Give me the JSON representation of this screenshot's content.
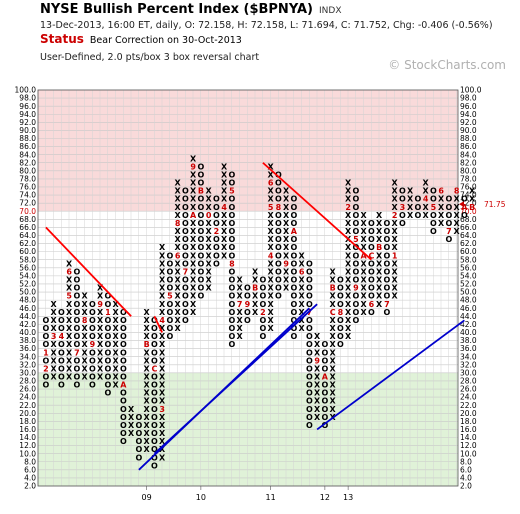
{
  "header": {
    "title": "NYSE Bullish Percent Index ($BPNYA)",
    "symbol_tag": "INDX",
    "subtitle": "13-Dec-2013, 16:00 ET, daily, O: 72.158, H: 72.158, L: 71.694, C: 71.752, Chg: -0.406 (-0.56%)",
    "status_label": "Status",
    "status_text": "Bear Correction on 30-Oct-2013",
    "chart_type_text": "User-Defined, 2.0 pts/box 3 box reversal chart",
    "watermark": "© StockCharts.com"
  },
  "chart_data": {
    "type": "point-and-figure",
    "box_size": 2.0,
    "reversal_boxes": 3,
    "ylim": [
      2,
      100
    ],
    "y_ticks": [
      2,
      4,
      6,
      8,
      10,
      12,
      14,
      16,
      18,
      20,
      22,
      24,
      26,
      28,
      30,
      32,
      34,
      36,
      38,
      40,
      42,
      44,
      46,
      48,
      50,
      52,
      54,
      56,
      58,
      60,
      62,
      64,
      66,
      68,
      70,
      72,
      74,
      76,
      78,
      80,
      82,
      84,
      86,
      88,
      90,
      92,
      94,
      96,
      98,
      100
    ],
    "zones": [
      {
        "name": "overbought",
        "from": 70,
        "to": 100,
        "color": "#f9dada"
      },
      {
        "name": "oversold",
        "from": 2,
        "to": 30,
        "color": "#e0f2d8"
      }
    ],
    "last_value_label": "71.75",
    "x_labels": [
      {
        "label": "09",
        "column": 13
      },
      {
        "label": "10",
        "column": 20
      },
      {
        "label": "11",
        "column": 29
      },
      {
        "label": "12",
        "column": 36
      },
      {
        "label": "13",
        "column": 39
      }
    ],
    "columns": [
      {
        "type": "O",
        "high": 44,
        "low": 28,
        "marks": {
          "36": "1",
          "32": "2"
        }
      },
      {
        "type": "X",
        "high": 48,
        "low": 30,
        "marks": {
          "40": "3"
        }
      },
      {
        "type": "O",
        "high": 46,
        "low": 28,
        "marks": {
          "40": "4"
        }
      },
      {
        "type": "X",
        "high": 58,
        "low": 30,
        "marks": {
          "50": "5",
          "56": "6"
        }
      },
      {
        "type": "O",
        "high": 56,
        "low": 28,
        "marks": {
          "36": "7"
        }
      },
      {
        "type": "X",
        "high": 50,
        "low": 30,
        "marks": {
          "44": "8"
        }
      },
      {
        "type": "O",
        "high": 48,
        "low": 28,
        "marks": {
          "38": "9"
        }
      },
      {
        "type": "X",
        "high": 52,
        "low": 30,
        "marks": {
          "48": "9"
        }
      },
      {
        "type": "O",
        "high": 50,
        "low": 26,
        "marks": {
          "46": "1"
        }
      },
      {
        "type": "X",
        "high": 48,
        "low": 28,
        "marks": {}
      },
      {
        "type": "O",
        "high": 46,
        "low": 14,
        "marks": {
          "28": "A"
        }
      },
      {
        "type": "X",
        "high": 22,
        "low": 16,
        "marks": {}
      },
      {
        "type": "O",
        "high": 20,
        "low": 10,
        "marks": {}
      },
      {
        "type": "X",
        "high": 46,
        "low": 12,
        "marks": {
          "38": "B"
        }
      },
      {
        "type": "O",
        "high": 44,
        "low": 8,
        "marks": {
          "32": "C"
        }
      },
      {
        "type": "X",
        "high": 62,
        "low": 10,
        "marks": {
          "22": "3",
          "44": "4"
        }
      },
      {
        "type": "O",
        "high": 60,
        "low": 40,
        "marks": {
          "50": "5"
        }
      },
      {
        "type": "X",
        "high": 78,
        "low": 42,
        "marks": {
          "60": "6",
          "68": "8"
        }
      },
      {
        "type": "O",
        "high": 76,
        "low": 44,
        "marks": {
          "56": "7"
        }
      },
      {
        "type": "X",
        "high": 84,
        "low": 46,
        "marks": {
          "82": "9",
          "70": "A"
        }
      },
      {
        "type": "O",
        "high": 82,
        "low": 50,
        "marks": {
          "76": "B"
        }
      },
      {
        "type": "X",
        "high": 76,
        "low": 52,
        "marks": {
          "70": "0"
        }
      },
      {
        "type": "O",
        "high": 74,
        "low": 58,
        "marks": {
          "66": "2"
        }
      },
      {
        "type": "X",
        "high": 82,
        "low": 60,
        "marks": {
          "72": "4"
        }
      },
      {
        "type": "O",
        "high": 80,
        "low": 38,
        "marks": {
          "76": "5",
          "58": "8"
        }
      },
      {
        "type": "X",
        "high": 54,
        "low": 40,
        "marks": {
          "48": "7"
        }
      },
      {
        "type": "O",
        "high": 52,
        "low": 44,
        "marks": {
          "48": "9"
        }
      },
      {
        "type": "X",
        "high": 56,
        "low": 46,
        "marks": {
          "52": "B"
        }
      },
      {
        "type": "O",
        "high": 54,
        "low": 40,
        "marks": {
          "46": "2"
        }
      },
      {
        "type": "X",
        "high": 82,
        "low": 42,
        "marks": {
          "60": "4",
          "72": "5",
          "78": "6"
        }
      },
      {
        "type": "O",
        "high": 80,
        "low": 50,
        "marks": {
          "72": "8"
        }
      },
      {
        "type": "X",
        "high": 76,
        "low": 52,
        "marks": {
          "58": "9"
        }
      },
      {
        "type": "O",
        "high": 74,
        "low": 40,
        "marks": {
          "66": "A"
        }
      },
      {
        "type": "X",
        "high": 60,
        "low": 42,
        "marks": {
          "56": "6"
        }
      },
      {
        "type": "O",
        "high": 58,
        "low": 18,
        "marks": {
          "46": "7"
        }
      },
      {
        "type": "X",
        "high": 40,
        "low": 20,
        "marks": {
          "34": "9"
        }
      },
      {
        "type": "O",
        "high": 38,
        "low": 18,
        "marks": {
          "30": "A"
        }
      },
      {
        "type": "X",
        "high": 56,
        "low": 20,
        "marks": {
          "52": "B",
          "46": "C"
        }
      },
      {
        "type": "O",
        "high": 54,
        "low": 38,
        "marks": {
          "46": "8"
        }
      },
      {
        "type": "X",
        "high": 78,
        "low": 40,
        "marks": {
          "72": "2"
        }
      },
      {
        "type": "O",
        "high": 76,
        "low": 44,
        "marks": {
          "64": "5",
          "52": "9"
        }
      },
      {
        "type": "X",
        "high": 70,
        "low": 46,
        "marks": {
          "60": "A"
        }
      },
      {
        "type": "O",
        "high": 68,
        "low": 46,
        "marks": {
          "60": "C",
          "48": "6"
        }
      },
      {
        "type": "X",
        "high": 70,
        "low": 48,
        "marks": {
          "62": "B"
        }
      },
      {
        "type": "O",
        "high": 68,
        "low": 46,
        "marks": {
          "48": "7"
        }
      },
      {
        "type": "X",
        "high": 78,
        "low": 50,
        "marks": {
          "60": "1",
          "70": "2"
        }
      },
      {
        "type": "O",
        "high": 76,
        "low": 68,
        "marks": {
          "72": "3"
        }
      },
      {
        "type": "X",
        "high": 76,
        "low": 70,
        "marks": {}
      },
      {
        "type": "O",
        "high": 74,
        "low": 70,
        "marks": {}
      },
      {
        "type": "X",
        "high": 78,
        "low": 70,
        "marks": {
          "74": "4"
        }
      },
      {
        "type": "O",
        "high": 76,
        "low": 66,
        "marks": {
          "72": "5"
        }
      },
      {
        "type": "X",
        "high": 76,
        "low": 68,
        "marks": {
          "76": "6"
        }
      },
      {
        "type": "O",
        "high": 74,
        "low": 64,
        "marks": {
          "66": "7"
        }
      },
      {
        "type": "X",
        "high": 76,
        "low": 66,
        "marks": {
          "76": "8"
        }
      },
      {
        "type": "O",
        "high": 74,
        "low": 70,
        "marks": {
          "72": "A"
        }
      },
      {
        "type": "X",
        "high": 76,
        "low": 72,
        "marks": {
          "72": "B"
        }
      }
    ],
    "trendlines": [
      {
        "type": "bearish-resistance",
        "color": "#ff0000",
        "points": [
          [
            0,
            66
          ],
          [
            11,
            44
          ]
        ]
      },
      {
        "type": "bearish-resistance",
        "color": "#ff0000",
        "points": [
          [
            14,
            44
          ],
          [
            15,
            40
          ]
        ]
      },
      {
        "type": "bullish-support",
        "color": "#0000cc",
        "points": [
          [
            12,
            6
          ],
          [
            34,
            46
          ]
        ]
      },
      {
        "type": "bullish-support",
        "color": "#0000cc",
        "points": [
          [
            14,
            10
          ],
          [
            35,
            47
          ]
        ]
      },
      {
        "type": "bearish-resistance",
        "color": "#ff0000",
        "points": [
          [
            28,
            82
          ],
          [
            42,
            58
          ]
        ]
      },
      {
        "type": "bullish-support",
        "color": "#0000cc",
        "points": [
          [
            35,
            16
          ],
          [
            54,
            43
          ]
        ]
      }
    ]
  }
}
